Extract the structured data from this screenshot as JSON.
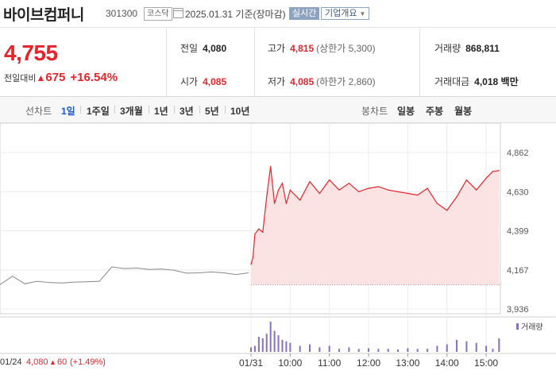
{
  "header": {
    "name": "바이브컴퍼니",
    "code": "301300",
    "market": "코스닥",
    "date": "2025.01.31",
    "basis": "기준(장마감)",
    "realtime_label": "실시간",
    "corp_label": "기업개요"
  },
  "quote": {
    "price": "4,755",
    "change_label": "전일대비",
    "change": "675",
    "change_pct": "+16.54%",
    "prev_label": "전일",
    "prev": "4,080",
    "open_label": "시가",
    "open": "4,085",
    "high_label": "고가",
    "high": "4,815",
    "upper_limit": "(상한가 5,300)",
    "low_label": "저가",
    "low": "4,085",
    "lower_limit": "(하한가 2,860)",
    "volume_label": "거래량",
    "volume": "868,811",
    "amount_label": "거래대금",
    "amount": "4,018",
    "amount_unit": "백만"
  },
  "tabs": {
    "line_label": "선차트",
    "line_periods": [
      "1일",
      "1주일",
      "3개월",
      "1년",
      "3년",
      "5년",
      "10년"
    ],
    "active": "1일",
    "candle_label": "봉차트",
    "candle_periods": [
      "일봉",
      "주봉",
      "월봉"
    ]
  },
  "colors": {
    "up": "#e5242b",
    "down": "#1a56c4",
    "prev_day_line": "#888888",
    "volume": "#8a6fbf",
    "fill": "#fbe3e3"
  },
  "chart_data": {
    "type": "line",
    "ylim": [
      3936,
      4862
    ],
    "y_ticks": [
      "4,862",
      "4,630",
      "4,399",
      "4,167",
      "3,936"
    ],
    "x_ticks": [
      "01/31",
      "10:00",
      "11:00",
      "12:00",
      "13:00",
      "14:00",
      "15:00"
    ],
    "legend": "거래량",
    "prev_day_info": {
      "date": "01/24",
      "close": "4,080",
      "change": "60",
      "change_pct": "(+1.49%)"
    },
    "prev_day_series": {
      "x": [
        0,
        0.05,
        0.1,
        0.15,
        0.2,
        0.25,
        0.3,
        0.35,
        0.4,
        0.45,
        0.5,
        0.55,
        0.6,
        0.65,
        0.7,
        0.75,
        0.8,
        0.85,
        0.9,
        0.95,
        1.0
      ],
      "values": [
        4080,
        4130,
        4085,
        4100,
        4092,
        4090,
        4095,
        4097,
        4100,
        4185,
        4175,
        4178,
        4170,
        4172,
        4165,
        4148,
        4150,
        4155,
        4150,
        4140,
        4150
      ]
    },
    "series": [
      {
        "x": [
          9.0,
          9.05,
          9.1,
          9.2,
          9.3,
          9.4,
          9.5,
          9.6,
          9.7,
          9.8,
          9.9,
          10.0,
          10.25,
          10.5,
          10.75,
          11.0,
          11.25,
          11.5,
          11.75,
          12.0,
          12.25,
          12.5,
          12.75,
          13.0,
          13.25,
          13.5,
          13.75,
          14.0,
          14.25,
          14.5,
          14.75,
          15.0,
          15.17,
          15.33
        ],
        "values": [
          4200,
          4240,
          4380,
          4410,
          4390,
          4600,
          4780,
          4560,
          4640,
          4680,
          4560,
          4640,
          4580,
          4690,
          4620,
          4700,
          4640,
          4680,
          4630,
          4650,
          4660,
          4640,
          4630,
          4620,
          4610,
          4650,
          4560,
          4520,
          4600,
          4700,
          4640,
          4710,
          4750,
          4755
        ]
      }
    ],
    "prev_close": 4080,
    "volume": {
      "x": [
        9.0,
        9.1,
        9.2,
        9.3,
        9.4,
        9.5,
        9.6,
        9.7,
        9.8,
        9.9,
        10.0,
        10.25,
        10.5,
        10.75,
        11.0,
        11.25,
        11.5,
        11.75,
        12.0,
        12.25,
        12.5,
        12.75,
        13.0,
        13.25,
        13.5,
        13.75,
        14.0,
        14.25,
        14.5,
        14.75,
        15.0,
        15.17,
        15.33
      ],
      "values": [
        0.15,
        0.2,
        0.5,
        0.45,
        0.6,
        1.0,
        0.7,
        0.55,
        0.4,
        0.35,
        0.3,
        0.2,
        0.25,
        0.15,
        0.2,
        0.1,
        0.15,
        0.1,
        0.12,
        0.1,
        0.1,
        0.08,
        0.12,
        0.1,
        0.1,
        0.2,
        0.25,
        0.4,
        0.35,
        0.3,
        0.2,
        0.1,
        0.45
      ]
    }
  }
}
